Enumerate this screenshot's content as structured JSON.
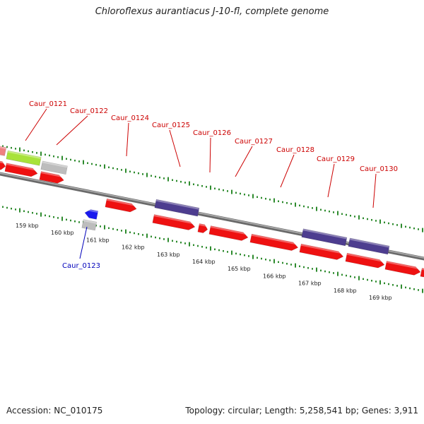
{
  "title": "Chloroflexus aurantiacus J-10-fl, complete genome",
  "accession": "Accession: NC_010175",
  "topology": "Topology: circular; Length: 5,258,541 bp; Genes: 3,911",
  "colors": {
    "backbone": "#7f7f7f",
    "tick": "#2e8b2e",
    "cds": "#ee1111",
    "gene_blue": "#1a1aee",
    "gene_purple": "#4d3d8f",
    "gene_gray": "#bdbdbd",
    "gene_green": "#a8e23a",
    "gene_pink": "#ef8080",
    "label_red": "#cc0000",
    "label_blue": "#0000bb"
  },
  "scale_labels": [
    "159 kbp",
    "160 kbp",
    "161 kbp",
    "162 kbp",
    "163 kbp",
    "164 kbp",
    "165 kbp",
    "166 kbp",
    "167 kbp",
    "168 kbp",
    "169 kbp"
  ],
  "gene_labels": [
    {
      "text": "Caur_0121",
      "color": "label_red"
    },
    {
      "text": "Caur_0122",
      "color": "label_red"
    },
    {
      "text": "Caur_0123",
      "color": "label_blue"
    },
    {
      "text": "Caur_0124",
      "color": "label_red"
    },
    {
      "text": "Caur_0125",
      "color": "label_red"
    },
    {
      "text": "Caur_0126",
      "color": "label_red"
    },
    {
      "text": "Caur_0127",
      "color": "label_red"
    },
    {
      "text": "Caur_0128",
      "color": "label_red"
    },
    {
      "text": "Caur_0129",
      "color": "label_red"
    },
    {
      "text": "Caur_0130",
      "color": "label_red"
    }
  ]
}
